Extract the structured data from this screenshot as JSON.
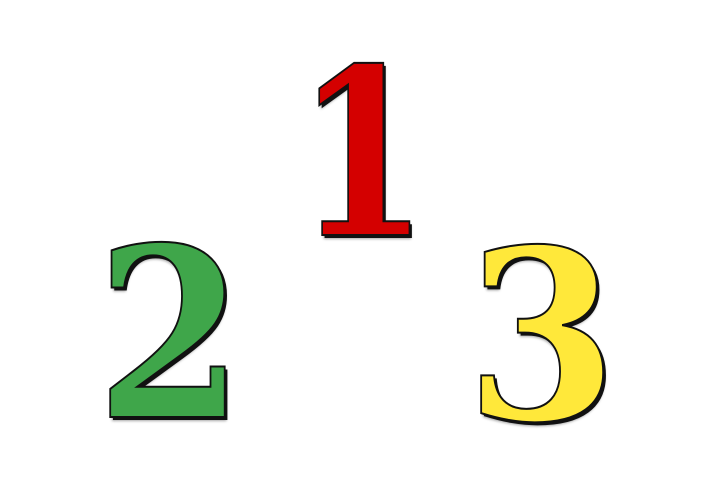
{
  "numbers": [
    {
      "label": "1",
      "color": "#d40000"
    },
    {
      "label": "2",
      "color": "#3fa64a"
    },
    {
      "label": "3",
      "color": "#ffe83a"
    }
  ]
}
